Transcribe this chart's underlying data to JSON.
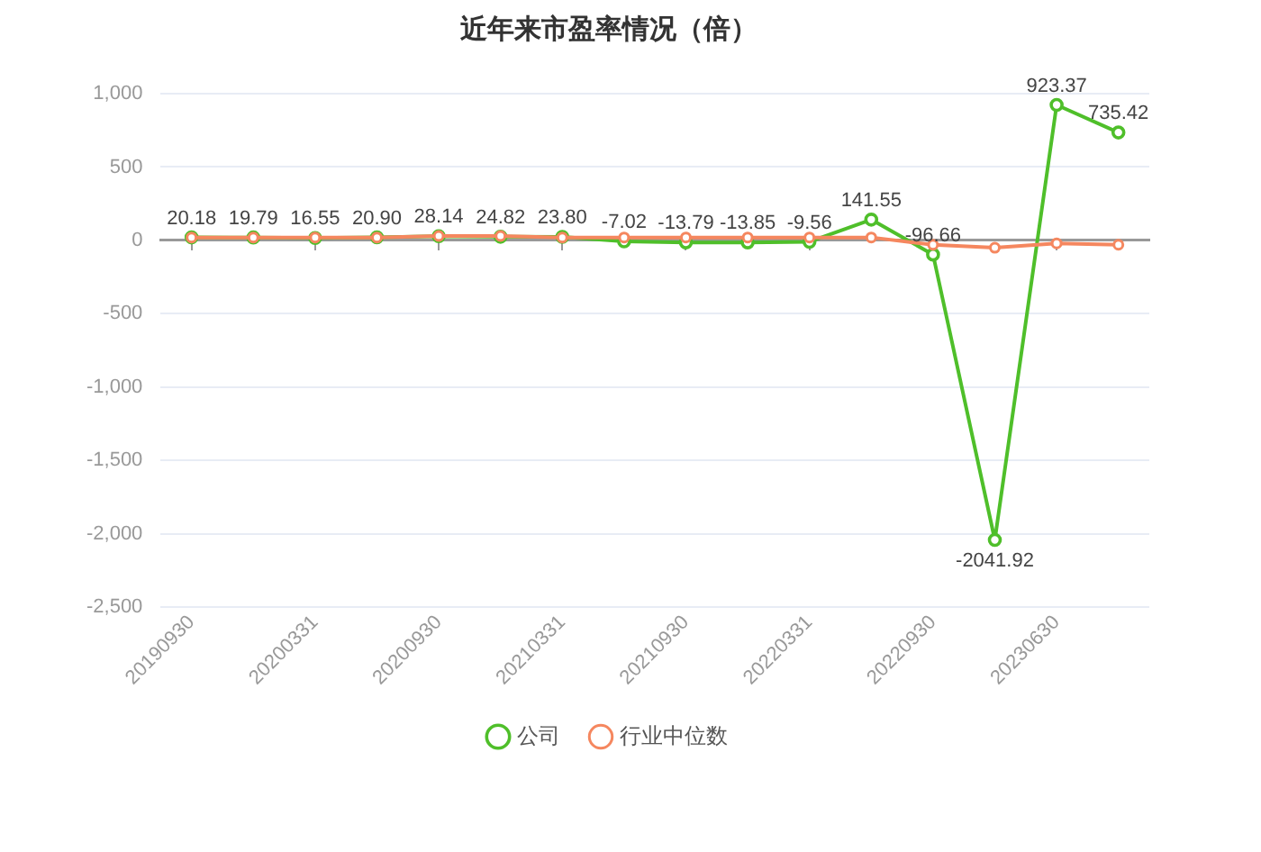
{
  "chart_data": {
    "type": "line",
    "title": "近年来市盈率情况（倍）",
    "categories": [
      "20190930",
      null,
      "20200331",
      null,
      "20200930",
      null,
      "20210331",
      null,
      "20210930",
      null,
      "20220331",
      null,
      "20220930",
      null,
      "20230630",
      null
    ],
    "series": [
      {
        "name": "公司",
        "color": "#4fbf2a",
        "values": [
          20.18,
          19.79,
          16.55,
          20.9,
          28.14,
          24.82,
          23.8,
          -7.02,
          -13.79,
          -13.85,
          -9.56,
          141.55,
          -96.66,
          -2041.92,
          923.37,
          735.42
        ],
        "value_labels": [
          "20.18",
          "19.79",
          "16.55",
          "20.90",
          "28.14",
          "24.82",
          "23.80",
          "-7.02",
          "-13.79",
          "-13.85",
          "-9.56",
          "141.55",
          "-96.66",
          "-2041.92",
          "923.37",
          "735.42"
        ]
      },
      {
        "name": "行业中位数",
        "color": "#f5875f",
        "values": [
          20,
          20,
          20,
          20,
          30,
          30,
          20,
          20,
          20,
          20,
          20,
          20,
          -30,
          -50,
          -20,
          -30
        ]
      }
    ],
    "ylim": [
      -2500,
      1000
    ],
    "yticks": [
      {
        "value": -2500,
        "label": "-2,500"
      },
      {
        "value": -2000,
        "label": "-2,000"
      },
      {
        "value": -1500,
        "label": "-1,500"
      },
      {
        "value": -1000,
        "label": "-1,000"
      },
      -500,
      0,
      500,
      {
        "value": 1000,
        "label": "1,000"
      }
    ],
    "grid": "y",
    "legend": "bottom",
    "marker": "circle"
  }
}
